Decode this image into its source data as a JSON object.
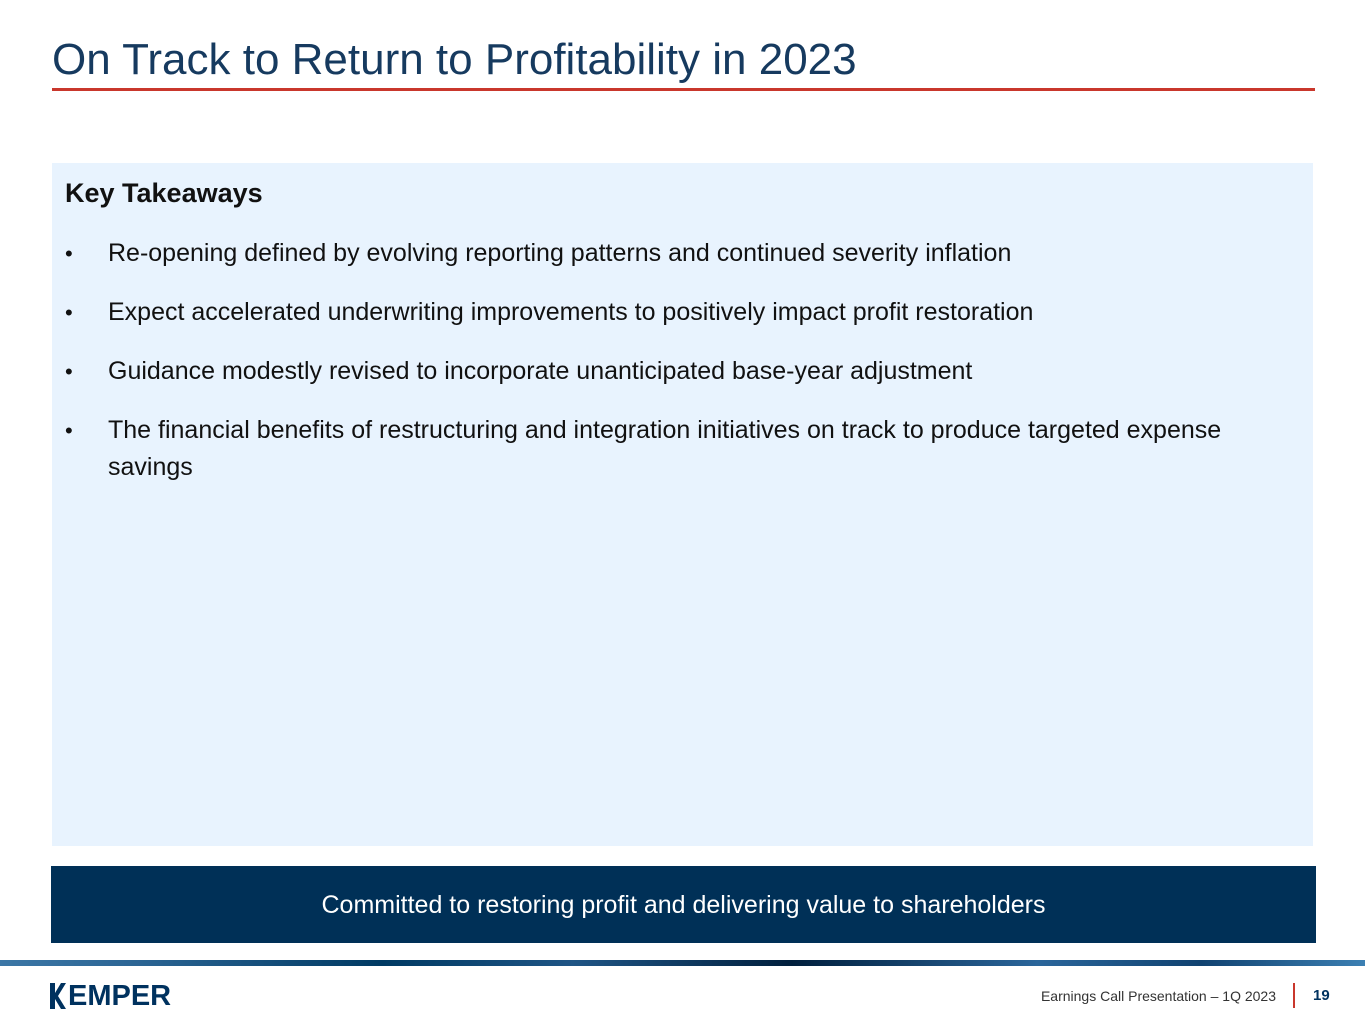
{
  "slide": {
    "title": "On Track to Return to Profitability in 2023"
  },
  "takeaways": {
    "heading": "Key Takeaways",
    "bullet_symbol": "•",
    "items": [
      "Re-opening defined by evolving reporting patterns and continued severity inflation",
      "Expect accelerated underwriting improvements to positively impact profit restoration",
      "Guidance modestly revised to incorporate unanticipated base-year adjustment",
      "The financial benefits of restructuring and integration initiatives on track to produce targeted expense savings"
    ]
  },
  "banner": {
    "text": "Committed to restoring profit and delivering value to shareholders"
  },
  "footer": {
    "logo_text": "EMPER",
    "logo_alt": "KEMPER",
    "caption": "Earnings Call Presentation – 1Q 2023",
    "page_number": "19"
  },
  "colors": {
    "title": "#163a5f",
    "accent_rule": "#c9372c",
    "panel_background": "#e8f3fe",
    "banner_background": "#003057",
    "brand_navy": "#00325f"
  }
}
